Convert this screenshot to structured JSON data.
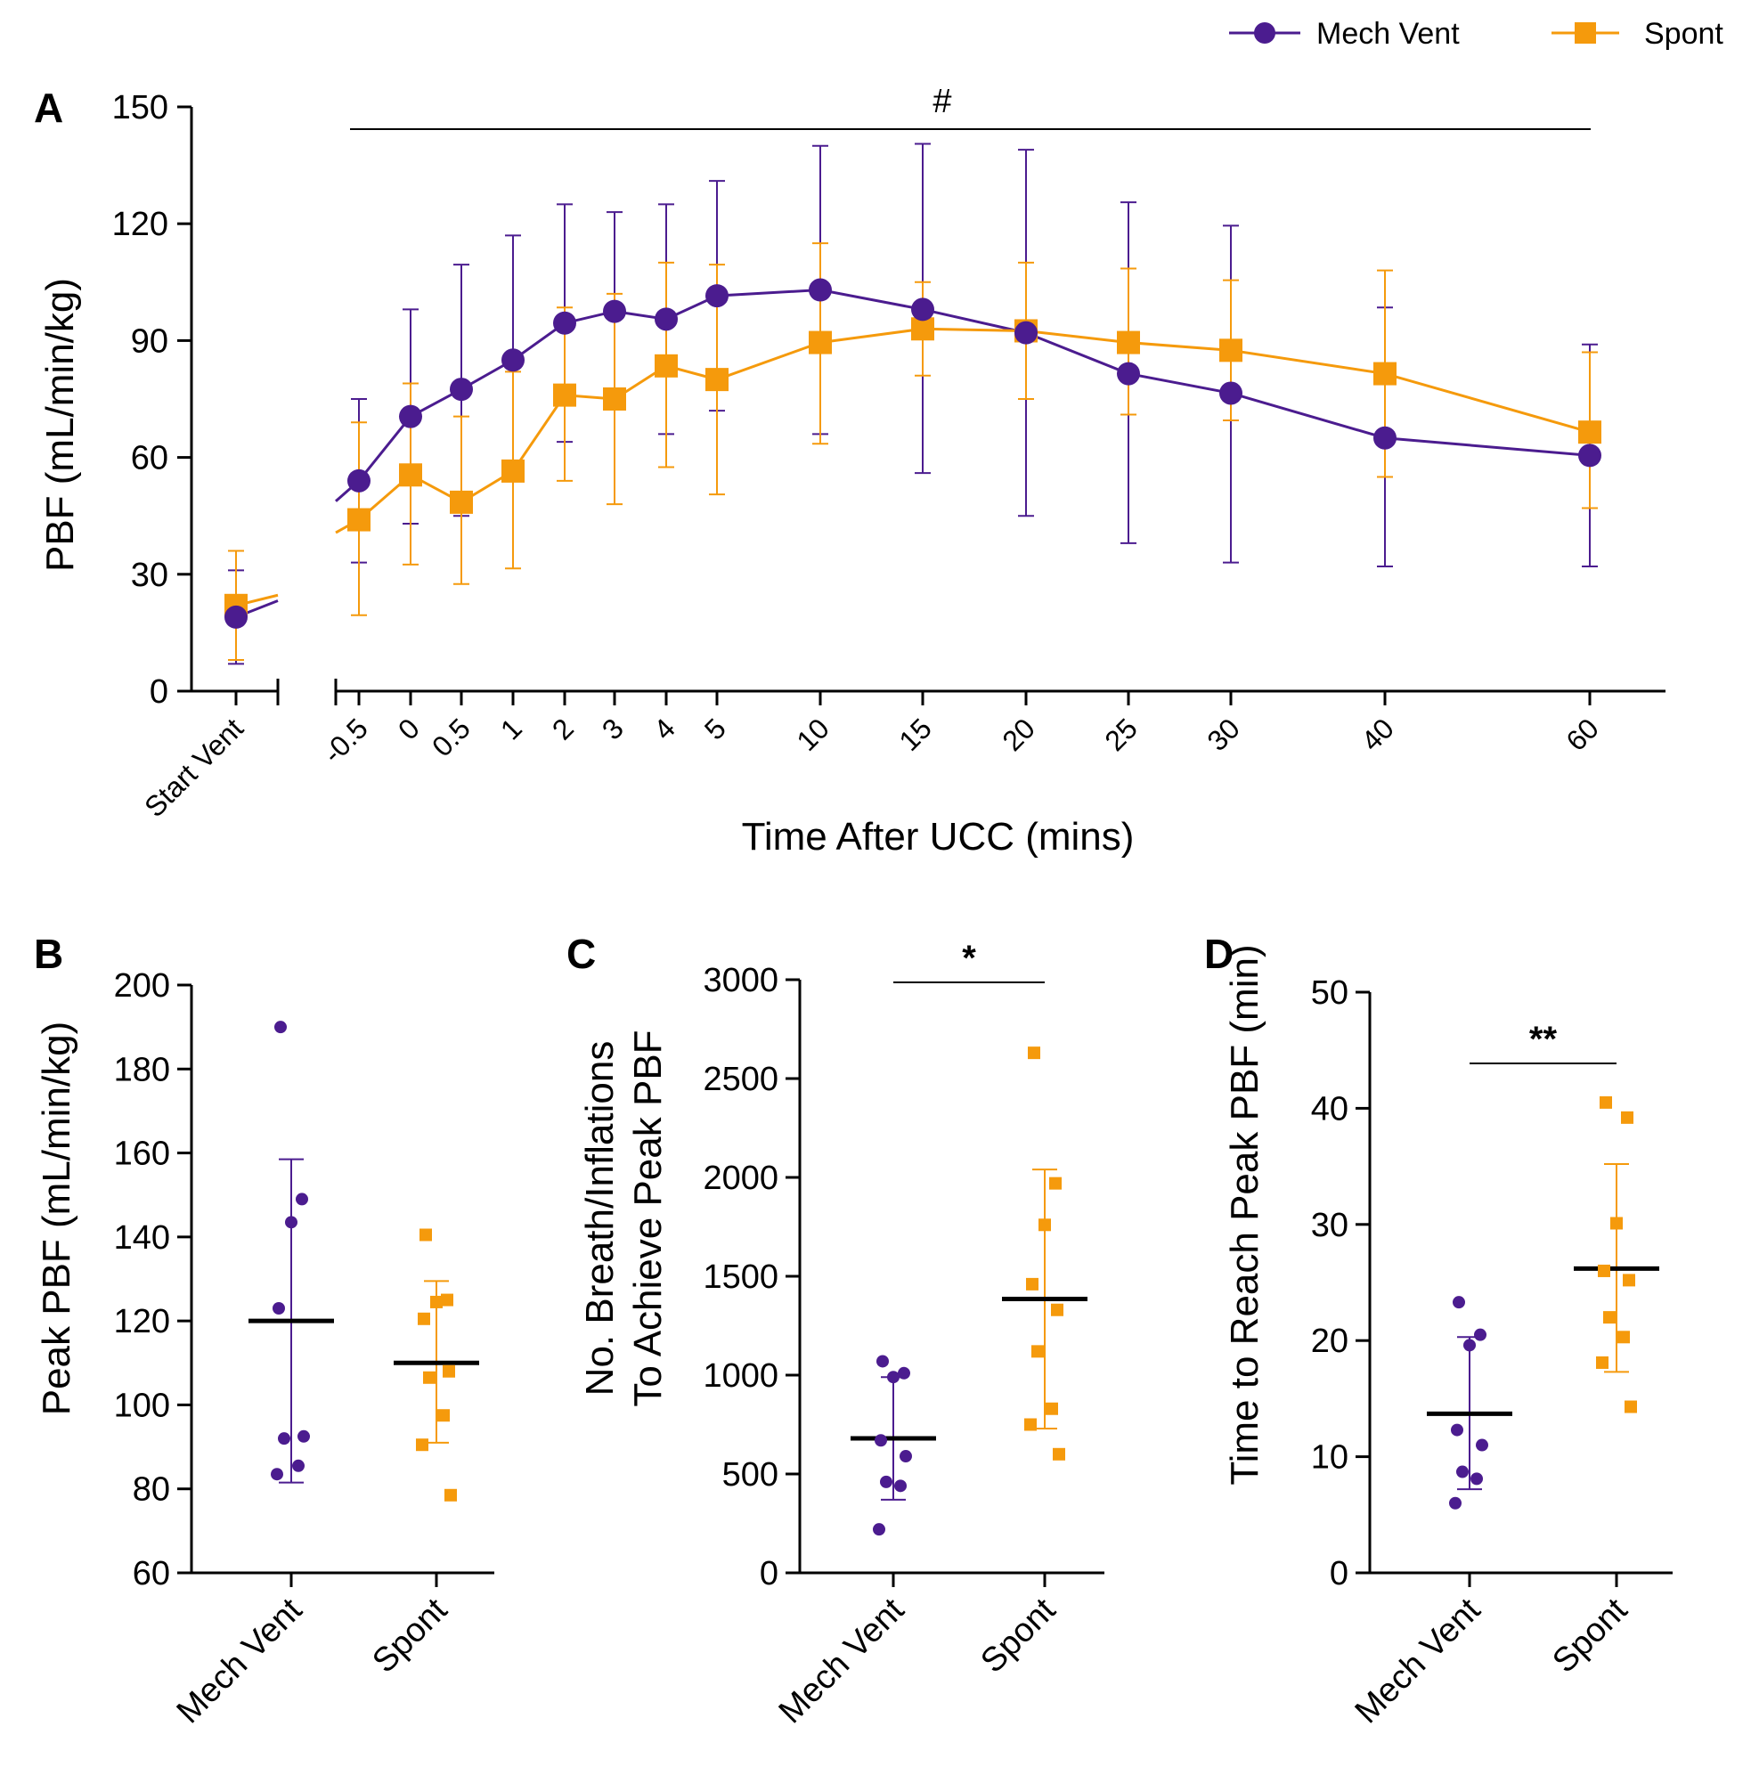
{
  "colors": {
    "mech": "#4b1c8f",
    "spont": "#f59a0c",
    "axis": "#000000"
  },
  "legend": [
    {
      "name": "Mech Vent",
      "marker": "circle"
    },
    {
      "name": "Spont",
      "marker": "square"
    }
  ],
  "chart_data": [
    {
      "panel": "A",
      "type": "line",
      "xlabel": "Time After UCC (mins)",
      "ylabel": "PBF (mL/min/kg)",
      "ylim": [
        0,
        150
      ],
      "yticks": [
        "0",
        "30",
        "60",
        "90",
        "120",
        "150"
      ],
      "x_baseline_label": "Start Vent",
      "x": [
        "-0.5",
        "0",
        "0.5",
        "1",
        "2",
        "3",
        "4",
        "5",
        "10",
        "15",
        "20",
        "25",
        "30",
        "40",
        "60"
      ],
      "significance": "#",
      "series": [
        {
          "name": "Mech Vent",
          "baseline": {
            "value": 19,
            "err_low": 7,
            "err_high": 31
          },
          "values": [
            54,
            70.5,
            77.5,
            85,
            94.5,
            97.5,
            95.5,
            101.5,
            103,
            98,
            92,
            81.5,
            76.5,
            65,
            60.5
          ],
          "err_low": [
            33,
            43,
            45,
            54,
            64,
            73,
            66,
            72,
            66,
            56,
            45,
            38,
            33,
            32,
            32
          ],
          "err_high": [
            75,
            98,
            109.5,
            117,
            125,
            123,
            125,
            131,
            140,
            140.5,
            139,
            125.5,
            119.5,
            98.5,
            89
          ]
        },
        {
          "name": "Spont",
          "baseline": {
            "value": 22,
            "err_low": 8,
            "err_high": 36
          },
          "values": [
            44,
            55.5,
            48.5,
            56.5,
            76,
            75,
            83.5,
            80,
            89.5,
            93,
            92.5,
            89.5,
            87.5,
            81.5,
            66.5
          ],
          "err_low": [
            19.5,
            32.5,
            27.5,
            31.5,
            54,
            48,
            57.5,
            50.5,
            63.5,
            81,
            75,
            71,
            69.5,
            55,
            47
          ],
          "err_high": [
            69,
            79,
            70.5,
            82,
            98.5,
            102,
            110,
            109.5,
            115,
            105,
            110,
            108.5,
            105.5,
            108,
            87
          ]
        }
      ]
    },
    {
      "panel": "B",
      "type": "scatter",
      "ylabel": "Peak PBF (mL/min/kg)",
      "ylim": [
        60,
        200
      ],
      "yticks": [
        "60",
        "80",
        "100",
        "120",
        "140",
        "160",
        "180",
        "200"
      ],
      "categories": [
        "Mech Vent",
        "Spont"
      ],
      "groups": [
        {
          "name": "Mech Vent",
          "points": [
            190,
            149,
            143.5,
            123,
            92.5,
            92,
            85.5,
            83.5
          ],
          "mean": 120,
          "sd_low": 81.5,
          "sd_high": 158.5
        },
        {
          "name": "Spont",
          "points": [
            140.5,
            125,
            124.5,
            120.5,
            108,
            106.5,
            97.5,
            90.5,
            78.5
          ],
          "mean": 110,
          "sd_low": 91,
          "sd_high": 129.5
        }
      ]
    },
    {
      "panel": "C",
      "type": "scatter",
      "ylabel": [
        "No. Breath/Inflations",
        "To Achieve Peak PBF"
      ],
      "ylim": [
        0,
        3000
      ],
      "yticks": [
        "0",
        "500",
        "1000",
        "1500",
        "2000",
        "2500",
        "3000"
      ],
      "categories": [
        "Mech Vent",
        "Spont"
      ],
      "significance": "*",
      "groups": [
        {
          "name": "Mech Vent",
          "points": [
            1070,
            1010,
            990,
            670,
            590,
            460,
            440,
            220
          ],
          "mean": 680,
          "sd_low": 370,
          "sd_high": 990
        },
        {
          "name": "Spont",
          "points": [
            2630,
            1970,
            1760,
            1460,
            1330,
            1120,
            830,
            750,
            600
          ],
          "mean": 1385,
          "sd_low": 730,
          "sd_high": 2040
        }
      ]
    },
    {
      "panel": "D",
      "type": "scatter",
      "ylabel": "Time to Reach Peak PBF (min)",
      "ylim": [
        0,
        50
      ],
      "yticks": [
        "0",
        "10",
        "20",
        "30",
        "40",
        "50"
      ],
      "categories": [
        "Mech Vent",
        "Spont"
      ],
      "significance": "**",
      "groups": [
        {
          "name": "Mech Vent",
          "points": [
            23.3,
            20.5,
            19.6,
            12.3,
            11,
            8.7,
            8.1,
            6
          ],
          "mean": 13.7,
          "sd_low": 7.2,
          "sd_high": 20.3
        },
        {
          "name": "Spont",
          "points": [
            40.5,
            39.2,
            30.1,
            26,
            25.2,
            22,
            20.3,
            18.1,
            14.3
          ],
          "mean": 26.2,
          "sd_low": 17.3,
          "sd_high": 35.2
        }
      ]
    }
  ]
}
